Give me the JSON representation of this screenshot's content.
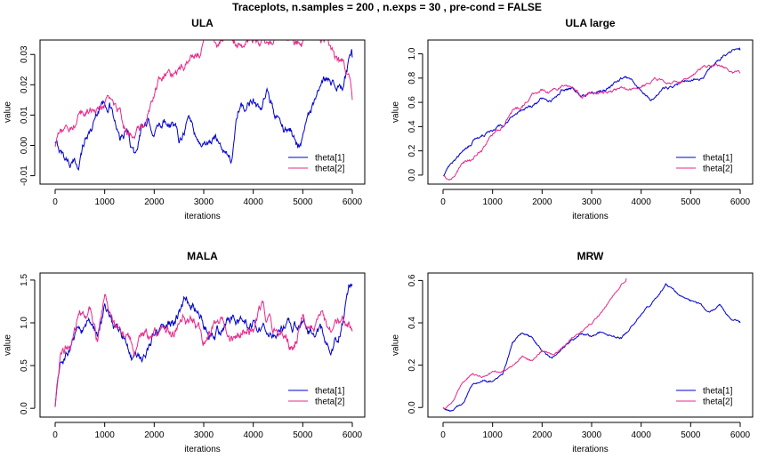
{
  "title": "Traceplots, n.samples = 200 , n.exps = 30 , pre-cond = FALSE",
  "colors": {
    "series1": "#0000CD",
    "series2": "#E7298A"
  },
  "chart_data": [
    {
      "type": "line",
      "title": "ULA",
      "xlabel": "iterations",
      "ylabel": "value",
      "xlim": [
        0,
        6000
      ],
      "ylim": [
        -0.011,
        0.033
      ],
      "xticks": [
        0,
        1000,
        2000,
        3000,
        4000,
        5000,
        6000
      ],
      "yticks": [
        -0.01,
        0.0,
        0.01,
        0.02,
        0.03
      ],
      "ytick_labels": [
        "-0.01",
        "0.00",
        "0.01",
        "0.02",
        "0.03"
      ],
      "legend": "bottom-right",
      "volatility": 0.0025,
      "series": [
        {
          "name": "theta[1]",
          "x": [
            0,
            150,
            300,
            450,
            600,
            750,
            900,
            1100,
            1300,
            1450,
            1600,
            1750,
            1900,
            2050,
            2200,
            2350,
            2500,
            2700,
            2900,
            3100,
            3250,
            3400,
            3550,
            3700,
            3850,
            4000,
            4150,
            4300,
            4450,
            4600,
            4750,
            4900,
            5050,
            5200,
            5350,
            5500,
            5650,
            5800,
            5950,
            6000
          ],
          "values": [
            0.0,
            -0.003,
            -0.005,
            -0.007,
            0.002,
            0.006,
            0.014,
            0.015,
            0.001,
            0.004,
            -0.004,
            0.007,
            0.006,
            0.005,
            0.009,
            0.009,
            0.003,
            0.01,
            0.001,
            0.001,
            0.002,
            0.0,
            -0.004,
            0.011,
            0.011,
            0.017,
            0.011,
            0.016,
            0.01,
            0.006,
            0.005,
            0.0,
            0.007,
            0.013,
            0.016,
            0.022,
            0.022,
            0.019,
            0.028,
            0.029
          ]
        },
        {
          "name": "theta[2]",
          "x": [
            0,
            150,
            300,
            450,
            600,
            750,
            900,
            1100,
            1300,
            1450,
            1600,
            1750,
            1900,
            2050,
            2200,
            2350,
            2500,
            2700,
            2900,
            3000,
            5500,
            5650,
            5800,
            5950,
            6000
          ],
          "values": [
            0.0,
            0.003,
            0.006,
            0.008,
            0.011,
            0.013,
            0.014,
            0.015,
            0.012,
            0.004,
            0.002,
            0.005,
            0.012,
            0.018,
            0.022,
            0.022,
            0.027,
            0.028,
            0.031,
            0.034,
            0.034,
            0.028,
            0.026,
            0.022,
            0.015
          ]
        }
      ]
    },
    {
      "type": "line",
      "title": "ULA large",
      "xlabel": "iterations",
      "ylabel": "value",
      "xlim": [
        0,
        6000
      ],
      "ylim": [
        -0.03,
        1.07
      ],
      "xticks": [
        0,
        1000,
        2000,
        3000,
        4000,
        5000,
        6000
      ],
      "yticks": [
        0.0,
        0.2,
        0.4,
        0.6,
        0.8,
        1.0
      ],
      "ytick_labels": [
        "0.0",
        "0.2",
        "0.4",
        "0.6",
        "0.8",
        "1.0"
      ],
      "legend": "bottom-right",
      "volatility": 0.02,
      "series": [
        {
          "name": "theta[1]",
          "x": [
            0,
            200,
            400,
            600,
            800,
            1000,
            1200,
            1400,
            1600,
            1800,
            2000,
            2200,
            2400,
            2600,
            2800,
            3000,
            3200,
            3400,
            3600,
            3800,
            4000,
            4200,
            4400,
            4600,
            4800,
            5000,
            5200,
            5400,
            5600,
            5800,
            6000
          ],
          "values": [
            0.0,
            0.12,
            0.2,
            0.28,
            0.33,
            0.38,
            0.41,
            0.5,
            0.55,
            0.58,
            0.63,
            0.62,
            0.71,
            0.73,
            0.68,
            0.68,
            0.7,
            0.72,
            0.78,
            0.78,
            0.72,
            0.62,
            0.7,
            0.72,
            0.75,
            0.8,
            0.8,
            0.88,
            0.96,
            1.02,
            1.03
          ]
        },
        {
          "name": "theta[2]",
          "x": [
            0,
            200,
            400,
            600,
            800,
            1000,
            1200,
            1400,
            1600,
            1800,
            2000,
            2200,
            2400,
            2600,
            2800,
            3000,
            3200,
            3400,
            3600,
            3800,
            4000,
            4200,
            4400,
            4600,
            4800,
            5000,
            5200,
            5400,
            5600,
            5800,
            6000
          ],
          "values": [
            0.0,
            -0.02,
            0.1,
            0.14,
            0.22,
            0.34,
            0.4,
            0.52,
            0.56,
            0.68,
            0.7,
            0.68,
            0.72,
            0.7,
            0.64,
            0.69,
            0.68,
            0.7,
            0.72,
            0.7,
            0.74,
            0.76,
            0.78,
            0.74,
            0.76,
            0.82,
            0.88,
            0.92,
            0.9,
            0.86,
            0.84
          ]
        }
      ]
    },
    {
      "type": "line",
      "title": "MALA",
      "xlabel": "iterations",
      "ylabel": "value",
      "xlim": [
        0,
        6000
      ],
      "ylim": [
        -0.04,
        1.52
      ],
      "xticks": [
        0,
        1000,
        2000,
        3000,
        4000,
        5000,
        6000
      ],
      "yticks": [
        0.0,
        0.5,
        1.0,
        1.5
      ],
      "ytick_labels": [
        "0.0",
        "0.5",
        "1.0",
        "1.5"
      ],
      "legend": "bottom-right",
      "volatility": 0.1,
      "series": [
        {
          "name": "theta[1]",
          "x": [
            0,
            100,
            250,
            400,
            550,
            700,
            850,
            1000,
            1200,
            1400,
            1600,
            1800,
            2000,
            2200,
            2400,
            2600,
            2800,
            3000,
            3200,
            3400,
            3600,
            3800,
            4000,
            4200,
            4400,
            4600,
            4800,
            5000,
            5200,
            5400,
            5600,
            5800,
            5950,
            6000
          ],
          "values": [
            0.0,
            0.45,
            0.6,
            0.8,
            0.9,
            1.0,
            0.85,
            1.15,
            0.9,
            0.8,
            0.6,
            0.55,
            0.9,
            0.85,
            1.0,
            1.25,
            1.3,
            0.95,
            0.85,
            0.9,
            1.05,
            0.9,
            0.95,
            1.0,
            0.85,
            0.95,
            0.9,
            1.0,
            0.95,
            0.85,
            0.75,
            1.0,
            1.4,
            1.45
          ]
        },
        {
          "name": "theta[2]",
          "x": [
            0,
            100,
            250,
            400,
            550,
            700,
            850,
            1000,
            1200,
            1400,
            1600,
            1800,
            2000,
            2200,
            2400,
            2600,
            2800,
            3000,
            3200,
            3400,
            3600,
            3800,
            4000,
            4200,
            4400,
            4600,
            4800,
            5000,
            5200,
            5400,
            5600,
            5800,
            6000
          ],
          "values": [
            0.0,
            0.55,
            0.75,
            0.9,
            1.1,
            1.2,
            0.75,
            1.25,
            1.0,
            0.85,
            0.75,
            0.8,
            0.85,
            0.95,
            0.85,
            1.1,
            1.0,
            0.8,
            0.9,
            1.05,
            0.85,
            0.95,
            0.95,
            1.2,
            0.9,
            0.95,
            0.75,
            1.05,
            1.0,
            1.05,
            0.8,
            0.95,
            0.9
          ]
        }
      ]
    },
    {
      "type": "line",
      "title": "MRW",
      "xlabel": "iterations",
      "ylabel": "value",
      "xlim": [
        0,
        6000
      ],
      "ylim": [
        -0.02,
        0.61
      ],
      "xticks": [
        0,
        1000,
        2000,
        3000,
        4000,
        5000,
        6000
      ],
      "yticks": [
        0.0,
        0.2,
        0.4,
        0.6
      ],
      "ytick_labels": [
        "0.0",
        "0.2",
        "0.4",
        "0.6"
      ],
      "legend": "bottom-right",
      "volatility": 0.008,
      "series": [
        {
          "name": "theta[1]",
          "x": [
            0,
            200,
            400,
            600,
            800,
            1000,
            1200,
            1400,
            1600,
            1800,
            2000,
            2200,
            2400,
            2600,
            2800,
            3000,
            3200,
            3400,
            3600,
            3800,
            4000,
            4200,
            4400,
            4500,
            4600,
            4800,
            5000,
            5200,
            5400,
            5600,
            5800,
            6000
          ],
          "values": [
            0.0,
            -0.02,
            0.02,
            0.1,
            0.13,
            0.12,
            0.15,
            0.3,
            0.35,
            0.33,
            0.27,
            0.23,
            0.28,
            0.32,
            0.35,
            0.33,
            0.36,
            0.34,
            0.33,
            0.38,
            0.44,
            0.48,
            0.55,
            0.58,
            0.56,
            0.52,
            0.5,
            0.48,
            0.45,
            0.48,
            0.42,
            0.4
          ]
        },
        {
          "name": "theta[2]",
          "x": [
            0,
            200,
            400,
            600,
            800,
            1000,
            1200,
            1400,
            1600,
            1800,
            2000,
            2200,
            2400,
            2600,
            2800,
            3000,
            3200,
            3400,
            3600,
            3700
          ],
          "values": [
            0.0,
            0.02,
            0.12,
            0.16,
            0.15,
            0.17,
            0.18,
            0.2,
            0.24,
            0.22,
            0.27,
            0.25,
            0.28,
            0.33,
            0.36,
            0.4,
            0.45,
            0.52,
            0.58,
            0.61
          ]
        }
      ]
    }
  ]
}
